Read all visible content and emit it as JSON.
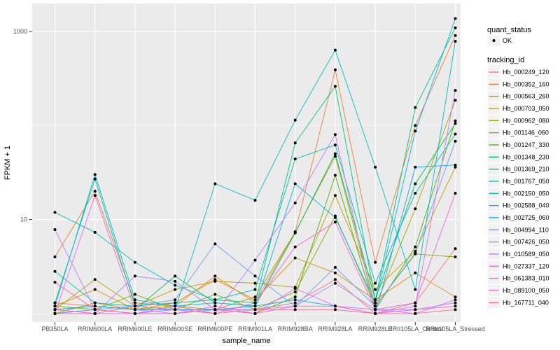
{
  "chart_data": {
    "type": "line",
    "title": "",
    "xlabel": "sample_name",
    "ylabel": "FPKM + 1",
    "y_scale": "log10",
    "grid": true,
    "panel_bg": "#EBEBEB",
    "grid_color": "#FFFFFF",
    "point_color": "#000000",
    "tick_color": "#333333",
    "legend_key_bg": "#F2F2F2",
    "y_tick_labels": [
      "1000",
      "10"
    ],
    "y_tick_values": [
      1000,
      10
    ],
    "y_minor_values": [
      100,
      1
    ],
    "ylim": [
      0.8,
      2000
    ],
    "categories": [
      "PB350LA",
      "RRIM600LA",
      "RRIM600LE",
      "RRIM600SE",
      "RRIM600PE",
      "RRIM901LA",
      "RRIM928BA",
      "RRIM928LA",
      "RRIM928LE",
      "RRII105LA_Control",
      "RRII105LA_Stressed"
    ],
    "legend": {
      "quant_status_title": "quant_status",
      "quant_status_items": [
        {
          "label": "OK"
        }
      ],
      "tracking_id_title": "tracking_id"
    },
    "series": [
      {
        "name": "Hb_000249_120",
        "color": "#F8766D",
        "values": [
          1.3,
          1.2,
          1.1,
          1.1,
          1.1,
          1.1,
          1.3,
          2.3,
          1.0,
          1.3,
          4.9
        ]
      },
      {
        "name": "Hb_000352_160",
        "color": "#EA8331",
        "values": [
          4.0,
          20,
          1.3,
          1.2,
          2.5,
          1.3,
          7.4,
          390,
          3.5,
          100,
          905
        ]
      },
      {
        "name": "Hb_000563_260",
        "color": "#D89000",
        "values": [
          1.2,
          1.8,
          1.1,
          1.3,
          2.3,
          1.4,
          3.9,
          2.7,
          1.4,
          2.7,
          1.5
        ]
      },
      {
        "name": "Hb_000703_050",
        "color": "#C09B00",
        "values": [
          1.1,
          2.3,
          1.2,
          1.8,
          2.2,
          2.1,
          1.9,
          18,
          1.8,
          4.6,
          36
        ]
      },
      {
        "name": "Hb_000962_080",
        "color": "#A3A500",
        "values": [
          1.0,
          1.3,
          1.1,
          1.2,
          1.1,
          1.5,
          7.3,
          47,
          1.2,
          13,
          185
        ]
      },
      {
        "name": "Hb_001146_060",
        "color": "#7CAE00",
        "values": [
          1.2,
          1.1,
          1.6,
          1.1,
          1.6,
          1.1,
          1.7,
          10.9,
          1.2,
          4.3,
          4.0
        ]
      },
      {
        "name": "Hb_001247_330",
        "color": "#49B500",
        "values": [
          1.0,
          1.1,
          1.0,
          1.0,
          1.1,
          1.0,
          1.5,
          29.5,
          1.1,
          5.1,
          112
        ]
      },
      {
        "name": "Hb_001348_230",
        "color": "#00BC51",
        "values": [
          1.1,
          1.2,
          1.1,
          2.5,
          1.3,
          1.2,
          7.2,
          50,
          1.4,
          24,
          105
        ]
      },
      {
        "name": "Hb_001369_210",
        "color": "#00C087",
        "values": [
          1.3,
          27,
          1.2,
          1.3,
          1.4,
          1.3,
          65,
          261,
          1.4,
          155,
          1090
        ]
      },
      {
        "name": "Hb_001767_050",
        "color": "#00C0B2",
        "values": [
          11.9,
          7.3,
          3.5,
          2.0,
          1.4,
          1.8,
          44,
          62,
          2.1,
          19,
          81
        ]
      },
      {
        "name": "Hb_002150_050",
        "color": "#00BFC4",
        "values": [
          2.8,
          1.3,
          1.2,
          1.1,
          24,
          16,
          114,
          632,
          36,
          1.8,
          785
        ]
      },
      {
        "name": "Hb_002588_040",
        "color": "#00B5EC",
        "values": [
          1.2,
          30,
          1.4,
          1.2,
          1.3,
          1.2,
          24,
          10.5,
          1.3,
          87,
          1370
        ]
      },
      {
        "name": "Hb_002725_060",
        "color": "#00A9FF",
        "values": [
          1.1,
          1.2,
          1.1,
          1.1,
          1.1,
          1.2,
          1.4,
          1.2,
          1.0,
          36,
          38
        ]
      },
      {
        "name": "Hb_004994_110",
        "color": "#6E9BFF",
        "values": [
          1.0,
          1.1,
          1.2,
          1.4,
          5.5,
          2.5,
          1.2,
          3.1,
          1.2,
          4.4,
          68
        ]
      },
      {
        "name": "Hb_007426_050",
        "color": "#9B8DFF",
        "values": [
          1.1,
          1.0,
          2.5,
          2.2,
          1.1,
          1.1,
          1.2,
          2.1,
          1.1,
          1.1,
          1.3
        ]
      },
      {
        "name": "Hb_010589_050",
        "color": "#C27BFF",
        "values": [
          7.8,
          1.1,
          1.0,
          1.1,
          1.0,
          3.7,
          15,
          80,
          1.0,
          1.2,
          236
        ]
      },
      {
        "name": "Hb_027337_120",
        "color": "#E16DF9",
        "values": [
          1.0,
          18,
          1.1,
          1.0,
          1.2,
          1.0,
          1.85,
          1.2,
          1.1,
          1.0,
          1.4
        ]
      },
      {
        "name": "Hb_061383_010",
        "color": "#F55EE4",
        "values": [
          1.1,
          1.0,
          1.0,
          1.2,
          1.0,
          1.3,
          5.1,
          9.4,
          1.1,
          1.3,
          19
        ]
      },
      {
        "name": "Hb_089100_050",
        "color": "#FF61C7",
        "values": [
          2.15,
          1.1,
          1.0,
          1.0,
          1.1,
          1.0,
          1.2,
          1.2,
          1.0,
          1.1,
          1.2
        ]
      },
      {
        "name": "Hb_167711_040",
        "color": "#FF6C91",
        "values": [
          1.0,
          1.0,
          1.2,
          1.1,
          1.0,
          1.1,
          1.1,
          1.1,
          1.0,
          1.0,
          1.1
        ]
      }
    ]
  }
}
